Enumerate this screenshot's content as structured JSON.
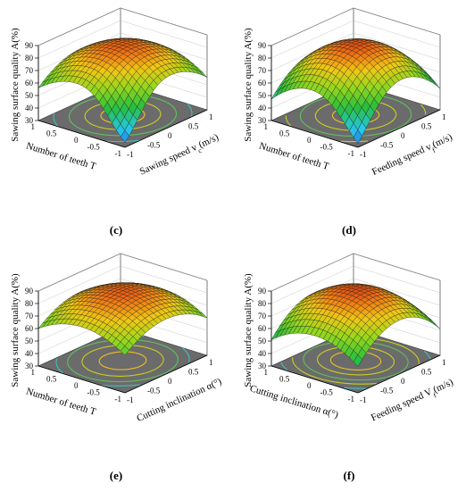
{
  "figure": {
    "panels_layout": "2x2 grid"
  },
  "chart_data": [
    {
      "type": "surface3d",
      "caption": "(c)",
      "zlabel": "Sawing surface quality A(%)",
      "xlabel": "Sawing speed v",
      "xlabel_sub": "c",
      "xlabel_tail": "(m/s)",
      "ylabel": "Number of teeth T",
      "z_ticks": [
        "30",
        "40",
        "50",
        "60",
        "70",
        "80",
        "90"
      ],
      "x_ticks": [
        "-1",
        "-0.5",
        "0",
        "0.5",
        "1"
      ],
      "y_ticks": [
        "-1",
        "-0.5",
        "0",
        "0.5",
        "1"
      ],
      "zlim": [
        30,
        90
      ],
      "xlim": [
        -1,
        1
      ],
      "ylim": [
        -1,
        1
      ],
      "model": {
        "z0": 86,
        "ax": 16,
        "ay": 14,
        "dip_x": -1,
        "dip_y": -1,
        "dip_depth": 22
      },
      "contour_levels": [
        84,
        80,
        74,
        66
      ],
      "corner_values": {
        "x-1_y-1": 35,
        "x1_y-1": 58,
        "x-1_y1": 56,
        "x1_y1": 58
      }
    },
    {
      "type": "surface3d",
      "caption": "(d)",
      "zlabel": "Sawing surface quality A(%)",
      "xlabel": "Feeding speed v",
      "xlabel_sub": "f",
      "xlabel_tail": "(m/s)",
      "ylabel": "Number of teeth T",
      "z_ticks": [
        "30",
        "40",
        "50",
        "60",
        "70",
        "80",
        "90"
      ],
      "x_ticks": [
        "-1",
        "-0.5",
        "0",
        "0.5",
        "1"
      ],
      "y_ticks": [
        "-1",
        "-0.5",
        "0",
        "0.5",
        "1"
      ],
      "zlim": [
        30,
        90
      ],
      "xlim": [
        -1,
        1
      ],
      "ylim": [
        -1,
        1
      ],
      "model": {
        "z0": 87,
        "ax": 22,
        "ay": 18,
        "dip_x": -1,
        "dip_y": -1,
        "dip_depth": 14
      },
      "contour_levels": [
        84,
        78,
        70,
        60,
        50
      ],
      "corner_values": {
        "x-1_y-1": 32,
        "x1_y-1": 48,
        "x-1_y1": 60,
        "x1_y1": 50
      }
    },
    {
      "type": "surface3d",
      "caption": "(e)",
      "zlabel": "Sawing surface quality A(%)",
      "xlabel": "Cutting inclination α(°)",
      "xlabel_sub": "",
      "xlabel_tail": "",
      "ylabel": "Number of teeth T",
      "z_ticks": [
        "30",
        "40",
        "50",
        "60",
        "70",
        "80",
        "90"
      ],
      "x_ticks": [
        "-1",
        "-0.5",
        "0",
        "0.5",
        "1"
      ],
      "y_ticks": [
        "-1",
        "-0.5",
        "0",
        "0.5",
        "1"
      ],
      "zlim": [
        30,
        90
      ],
      "xlim": [
        -1,
        1
      ],
      "ylim": [
        -1,
        1
      ],
      "model": {
        "z0": 86,
        "ax": 14,
        "ay": 12,
        "dip_x": 0,
        "dip_y": 0,
        "dip_depth": 0
      },
      "contour_levels": [
        84,
        80,
        75,
        70
      ],
      "corner_values": {
        "x-1_y-1": 60,
        "x1_y-1": 60,
        "x-1_y1": 60,
        "x1_y1": 60
      }
    },
    {
      "type": "surface3d",
      "caption": "(f)",
      "zlabel": "Sawing surface quality A(%)",
      "xlabel": "Feeding speed V",
      "xlabel_sub": "f",
      "xlabel_tail": "(m/s)",
      "ylabel": "Cutting inclination α(°)",
      "z_ticks": [
        "30",
        "40",
        "50",
        "60",
        "70",
        "80",
        "90"
      ],
      "x_ticks": [
        "-1",
        "-0.5",
        "0",
        "0.5",
        "1"
      ],
      "y_ticks": [
        "-1",
        "-0.5",
        "0",
        "0.5",
        "1"
      ],
      "zlim": [
        30,
        90
      ],
      "xlim": [
        -1,
        1
      ],
      "ylim": [
        -1,
        1
      ],
      "model": {
        "z0": 87,
        "ax": 22,
        "ay": 14,
        "dip_x": 0,
        "dip_y": 0,
        "dip_depth": 0
      },
      "contour_levels": [
        84,
        80,
        74,
        68,
        60
      ],
      "corner_values": {
        "x-1_y-1": 51,
        "x1_y-1": 51,
        "x-1_y1": 51,
        "x1_y1": 51
      }
    }
  ]
}
